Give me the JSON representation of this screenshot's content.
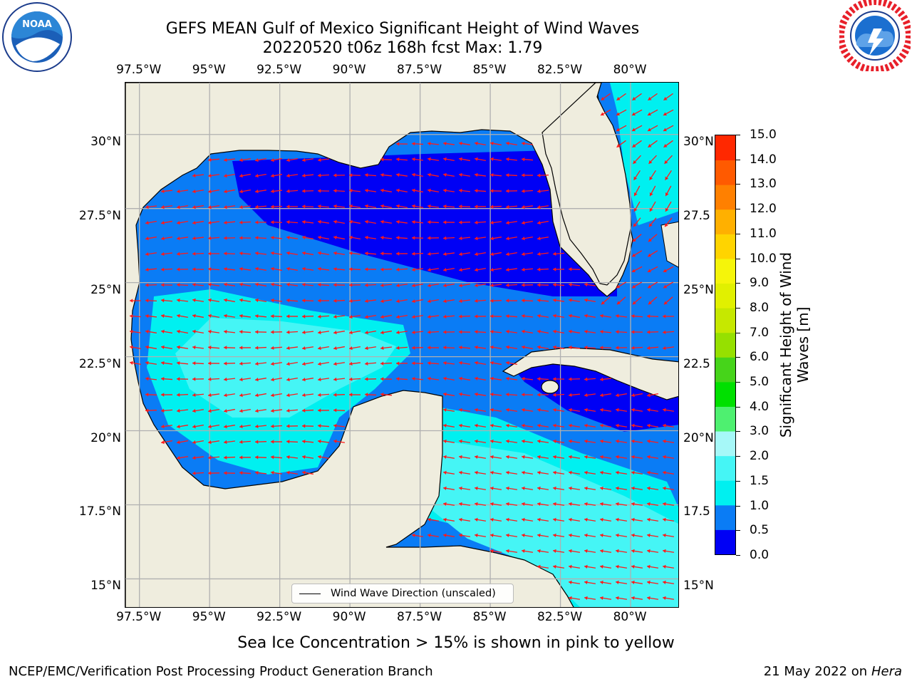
{
  "title": {
    "line1": "GEFS MEAN Gulf of Mexico Significant Height of Wind Waves",
    "line2": "20220520 t06z 168h fcst   Max: 1.79"
  },
  "logos": {
    "noaa": {
      "text": "NOAA",
      "ring_text": "NATIONAL OCEANIC AND ATMOSPHERIC ADMINISTRATION · U.S. DEPARTMENT OF COMMERCE"
    },
    "nws": {
      "ring_text": "NATIONAL WEATHER SERVICE"
    }
  },
  "axes": {
    "x_ticks": [
      "97.5°W",
      "95°W",
      "92.5°W",
      "90°W",
      "87.5°W",
      "85°W",
      "82.5°W",
      "80°W"
    ],
    "x_values": [
      -97.5,
      -95,
      -92.5,
      -90,
      -87.5,
      -85,
      -82.5,
      -80
    ],
    "y_ticks": [
      "30°N",
      "27.5°N",
      "25°N",
      "22.5°N",
      "20°N",
      "17.5°N",
      "15°N"
    ],
    "y_ticks_right": [
      "30°N",
      "27.5",
      "25°N",
      "22.5",
      "20°N",
      "17.5",
      "15°N"
    ],
    "y_values": [
      30,
      27.5,
      25,
      22.5,
      20,
      17.5,
      15
    ],
    "lon_range": [
      -98,
      -78.25
    ],
    "lat_range": [
      14,
      31.75
    ],
    "grid": true
  },
  "colorbar": {
    "label": "Significant Height of Wind Waves [m]",
    "ticks": [
      "0.0",
      "0.5",
      "1.0",
      "1.5",
      "2.0",
      "3.0",
      "4.0",
      "5.0",
      "6.0",
      "7.0",
      "8.0",
      "9.0",
      "10.0",
      "11.0",
      "12.0",
      "13.0",
      "14.0",
      "15.0"
    ],
    "colors": [
      "#0000f5",
      "#0a7cf5",
      "#00f0f0",
      "#45f5f5",
      "#a6f8f8",
      "#4ef070",
      "#00e000",
      "#46d41a",
      "#96e000",
      "#c6e800",
      "#e1f000",
      "#f5f50a",
      "#ffd400",
      "#ffb000",
      "#ff8000",
      "#ff5a00",
      "#ff2800",
      "#ff0000"
    ]
  },
  "legend": {
    "label": "Wind Wave Direction (unscaled)"
  },
  "note": "Sea Ice Concentration > 15% is shown in pink to yellow",
  "footer": {
    "left": "NCEP/EMC/Verification Post Processing Product Generation Branch",
    "date": "21 May 2022 on",
    "host": "Hera"
  }
}
